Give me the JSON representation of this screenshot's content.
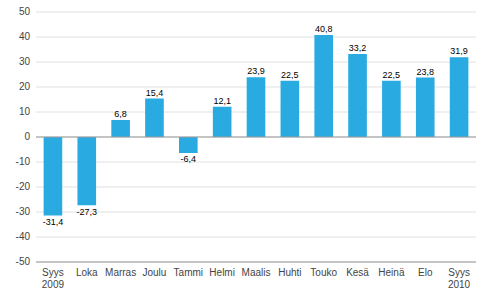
{
  "chart_data": {
    "type": "bar",
    "categories": [
      "Syys\n2009",
      "Loka",
      "Marras",
      "Joulu",
      "Tammi",
      "Helmi",
      "Maalis",
      "Huhti",
      "Touko",
      "Kesä",
      "Heinä",
      "Elo",
      "Syys\n2010"
    ],
    "values": [
      -31.4,
      -27.3,
      6.8,
      15.4,
      -6.4,
      12.1,
      23.9,
      22.5,
      40.8,
      33.2,
      22.5,
      23.8,
      31.9
    ],
    "value_labels": [
      "-31,4",
      "-27,3",
      "6,8",
      "15,4",
      "-6,4",
      "12,1",
      "23,9",
      "22,5",
      "40,8",
      "33,2",
      "22,5",
      "23,8",
      "31,9"
    ],
    "data_labels": true,
    "color": "#29abe2",
    "ylim": [
      -50,
      50
    ],
    "yticks": [
      -50,
      -40,
      -30,
      -20,
      -10,
      0,
      10,
      20,
      30,
      40,
      50
    ],
    "grid": true
  }
}
